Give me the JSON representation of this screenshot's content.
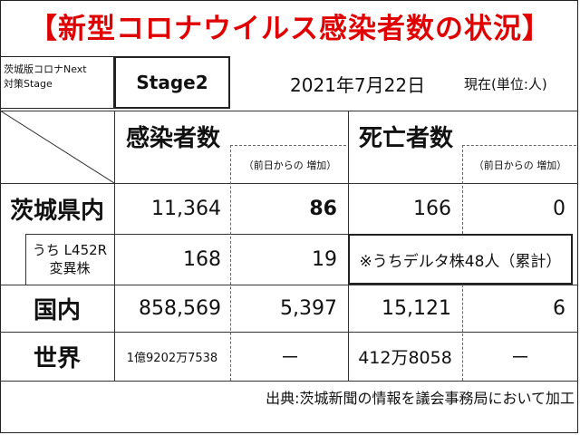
{
  "title": "【新型コロナウイルス感染者数の状況】",
  "stage": {
    "label_line1": "茨城版コロナNext",
    "label_line2": "対策Stage",
    "value": "Stage2"
  },
  "date": "2021年7月22日",
  "unit": "現在(単位:人)",
  "headers": {
    "infected": "感染者数",
    "infected_delta": "（前日からの 増加）",
    "deaths": "死亡者数",
    "deaths_delta": "（前日からの 増加）"
  },
  "rows": [
    {
      "label": "茨城県内",
      "infected": "11,364",
      "infected_delta": "86",
      "deaths": "166",
      "deaths_delta": "0"
    },
    {
      "label_line1": "うち L452R",
      "label_line2": "変異株",
      "infected": "168",
      "infected_delta": "19",
      "note": "※うちデルタ株48人（累計）"
    },
    {
      "label": "国内",
      "infected": "858,569",
      "infected_delta": "5,397",
      "deaths": "15,121",
      "deaths_delta": "6"
    },
    {
      "label": "世界",
      "infected": "1億9202万7538",
      "infected_delta": "－",
      "deaths": "412万8058",
      "deaths_delta": "－"
    }
  ],
  "source": "出典:茨城新聞の情報を議会事務局において加工"
}
